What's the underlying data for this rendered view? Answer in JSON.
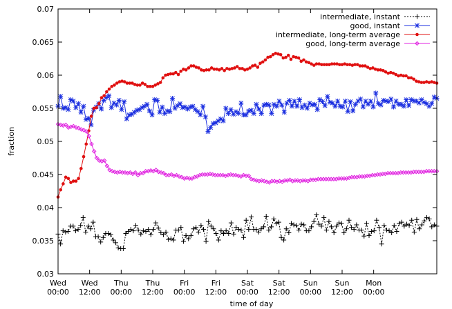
{
  "chart_data": {
    "type": "line",
    "title": "",
    "xlabel": "time of day",
    "ylabel": "fraction",
    "xlim": [
      0,
      96
    ],
    "ylim": [
      0.03,
      0.07
    ],
    "grid": false,
    "legend_position": "top-right",
    "x_ticks": [
      {
        "x": 0,
        "line1": "Wed",
        "line2": "00:00"
      },
      {
        "x": 8,
        "line1": "Wed",
        "line2": "12:00"
      },
      {
        "x": 16,
        "line1": "Thu",
        "line2": "00:00"
      },
      {
        "x": 24,
        "line1": "Thu",
        "line2": "12:00"
      },
      {
        "x": 32,
        "line1": "Fri",
        "line2": "00:00"
      },
      {
        "x": 40,
        "line1": "Fri",
        "line2": "12:00"
      },
      {
        "x": 48,
        "line1": "Sat",
        "line2": "00:00"
      },
      {
        "x": 56,
        "line1": "Sat",
        "line2": "12:00"
      },
      {
        "x": 64,
        "line1": "Sun",
        "line2": "00:00"
      },
      {
        "x": 72,
        "line1": "Sun",
        "line2": "12:00"
      },
      {
        "x": 80,
        "line1": "Mon",
        "line2": "00:00"
      }
    ],
    "y_ticks": [
      "0.03",
      "0.035",
      "0.04",
      "0.045",
      "0.05",
      "0.055",
      "0.06",
      "0.065",
      "0.07"
    ],
    "series": [
      {
        "name": "intermediate, instant",
        "color": "#000000",
        "marker": "plus",
        "dash": "2,2",
        "values": [
          0.036,
          0.0345,
          0.0365,
          0.0363,
          0.0364,
          0.0372,
          0.0372,
          0.0365,
          0.0367,
          0.0373,
          0.0385,
          0.0363,
          0.0372,
          0.0368,
          0.0378,
          0.0356,
          0.0356,
          0.0348,
          0.0355,
          0.0361,
          0.0361,
          0.0359,
          0.0351,
          0.0347,
          0.0339,
          0.0338,
          0.0338,
          0.0361,
          0.0364,
          0.0367,
          0.0365,
          0.0373,
          0.0366,
          0.036,
          0.0365,
          0.0364,
          0.0367,
          0.0359,
          0.0367,
          0.0377,
          0.0369,
          0.0362,
          0.0359,
          0.0363,
          0.0352,
          0.0353,
          0.0351,
          0.0366,
          0.0366,
          0.037,
          0.0349,
          0.0358,
          0.0353,
          0.0358,
          0.0368,
          0.037,
          0.0363,
          0.0373,
          0.0367,
          0.0349,
          0.0379,
          0.0372,
          0.0368,
          0.0361,
          0.0351,
          0.0365,
          0.0361,
          0.0365,
          0.0361,
          0.0377,
          0.036,
          0.037,
          0.0367,
          0.0366,
          0.0355,
          0.0381,
          0.0367,
          0.0386,
          0.0367,
          0.0367,
          0.0363,
          0.0368,
          0.0371,
          0.0387,
          0.0366,
          0.0371,
          0.0383,
          0.0376,
          0.0378,
          0.0355,
          0.0351,
          0.0368,
          0.0362,
          0.0376,
          0.0374,
          0.0373,
          0.0366,
          0.0375,
          0.0374,
          0.0365,
          0.0365,
          0.0371,
          0.0379,
          0.0389,
          0.0375,
          0.0372,
          0.0385,
          0.0366,
          0.0379,
          0.0371,
          0.0362,
          0.0372,
          0.0377,
          0.0376,
          0.0362,
          0.0368,
          0.0381,
          0.037,
          0.0367,
          0.0374,
          0.0366,
          0.0366,
          0.0357,
          0.0376,
          0.0358,
          0.0364,
          0.0365,
          0.0381,
          0.037,
          0.0345,
          0.0373,
          0.0366,
          0.0365,
          0.0362,
          0.0373,
          0.0364,
          0.0376,
          0.0378,
          0.0372,
          0.0375,
          0.0373,
          0.0381,
          0.0363,
          0.0382,
          0.0368,
          0.0374,
          0.038,
          0.0385,
          0.0383,
          0.0371,
          0.0374,
          0.0372
        ]
      },
      {
        "name": "good, instant",
        "color": "#1a2ee0",
        "marker": "star",
        "dash": "",
        "values": [
          0.0553,
          0.0568,
          0.055,
          0.0551,
          0.0548,
          0.0563,
          0.0561,
          0.0551,
          0.0557,
          0.0544,
          0.0553,
          0.0533,
          0.0535,
          0.0525,
          0.0547,
          0.0552,
          0.0557,
          0.0549,
          0.0562,
          0.0566,
          0.0569,
          0.0551,
          0.0558,
          0.0555,
          0.0562,
          0.0548,
          0.056,
          0.0534,
          0.054,
          0.0541,
          0.0544,
          0.0547,
          0.0548,
          0.0551,
          0.0553,
          0.0556,
          0.0546,
          0.054,
          0.0563,
          0.0562,
          0.0544,
          0.0552,
          0.0542,
          0.0546,
          0.0545,
          0.0565,
          0.055,
          0.0554,
          0.0557,
          0.0551,
          0.0552,
          0.0549,
          0.0552,
          0.0553,
          0.0548,
          0.0545,
          0.054,
          0.0553,
          0.0537,
          0.0515,
          0.0521,
          0.0527,
          0.0528,
          0.0531,
          0.0534,
          0.0531,
          0.055,
          0.0542,
          0.0548,
          0.0541,
          0.0545,
          0.0542,
          0.0558,
          0.054,
          0.054,
          0.0546,
          0.0547,
          0.0542,
          0.0556,
          0.0549,
          0.0542,
          0.0555,
          0.0556,
          0.0555,
          0.0542,
          0.0556,
          0.0553,
          0.0561,
          0.0555,
          0.0544,
          0.0558,
          0.0562,
          0.0553,
          0.0561,
          0.0553,
          0.0563,
          0.0551,
          0.0555,
          0.055,
          0.0558,
          0.0555,
          0.0556,
          0.0548,
          0.0563,
          0.056,
          0.0554,
          0.0568,
          0.0559,
          0.0558,
          0.0553,
          0.0561,
          0.0553,
          0.0552,
          0.0561,
          0.0545,
          0.056,
          0.0546,
          0.0556,
          0.0561,
          0.0564,
          0.0552,
          0.0561,
          0.0556,
          0.0561,
          0.0552,
          0.0573,
          0.0557,
          0.0555,
          0.0562,
          0.0561,
          0.056,
          0.0564,
          0.0552,
          0.0561,
          0.0556,
          0.0556,
          0.0553,
          0.0563,
          0.0554,
          0.0563,
          0.0561,
          0.0561,
          0.0558,
          0.0563,
          0.0559,
          0.0557,
          0.0553,
          0.0557,
          0.0567,
          0.0565
        ]
      },
      {
        "name": "intermediate, long-term average",
        "color": "#e01010",
        "marker": "circle",
        "dash": "",
        "values": [
          0.0416,
          0.0427,
          0.0436,
          0.0446,
          0.0444,
          0.0438,
          0.044,
          0.044,
          0.0444,
          0.0459,
          0.0477,
          0.0496,
          0.0516,
          0.0538,
          0.055,
          0.0551,
          0.0557,
          0.0566,
          0.0569,
          0.0575,
          0.0579,
          0.0583,
          0.0585,
          0.0588,
          0.059,
          0.0591,
          0.059,
          0.0588,
          0.0588,
          0.0588,
          0.0586,
          0.0585,
          0.0585,
          0.0588,
          0.0586,
          0.0583,
          0.0583,
          0.0583,
          0.0585,
          0.0587,
          0.0589,
          0.0596,
          0.06,
          0.0601,
          0.0602,
          0.0602,
          0.0604,
          0.0601,
          0.0606,
          0.0609,
          0.0608,
          0.0611,
          0.0614,
          0.0614,
          0.0612,
          0.0611,
          0.0608,
          0.0607,
          0.0608,
          0.0608,
          0.0611,
          0.0609,
          0.0609,
          0.0608,
          0.061,
          0.0607,
          0.061,
          0.0609,
          0.061,
          0.0611,
          0.0613,
          0.061,
          0.061,
          0.0608,
          0.0609,
          0.0611,
          0.0614,
          0.0615,
          0.0612,
          0.0618,
          0.062,
          0.0623,
          0.0627,
          0.0628,
          0.0631,
          0.0633,
          0.0632,
          0.0631,
          0.0626,
          0.0627,
          0.063,
          0.0624,
          0.0628,
          0.0627,
          0.0626,
          0.0621,
          0.0623,
          0.062,
          0.0619,
          0.0617,
          0.0615,
          0.0617,
          0.0617,
          0.0616,
          0.0616,
          0.0616,
          0.0616,
          0.0617,
          0.0617,
          0.0617,
          0.0616,
          0.0616,
          0.0617,
          0.0616,
          0.0616,
          0.0615,
          0.0616,
          0.0616,
          0.0614,
          0.0614,
          0.0614,
          0.0612,
          0.061,
          0.0611,
          0.0609,
          0.0608,
          0.0608,
          0.0607,
          0.0605,
          0.0603,
          0.0604,
          0.0603,
          0.0601,
          0.0599,
          0.06,
          0.0599,
          0.0599,
          0.0596,
          0.0596,
          0.0594,
          0.0591,
          0.059,
          0.0589,
          0.0589,
          0.059,
          0.0589,
          0.059,
          0.0589,
          0.0588
        ]
      },
      {
        "name": "good, long-term average",
        "color": "#e020e0",
        "marker": "diamond",
        "dash": "",
        "values": [
          0.0526,
          0.0525,
          0.0524,
          0.0525,
          0.0521,
          0.0522,
          0.0523,
          0.0521,
          0.052,
          0.0518,
          0.0517,
          0.0515,
          0.0508,
          0.0496,
          0.0485,
          0.0475,
          0.0471,
          0.047,
          0.0471,
          0.0463,
          0.0457,
          0.0455,
          0.0454,
          0.0453,
          0.0454,
          0.0453,
          0.0453,
          0.0452,
          0.0453,
          0.0451,
          0.0453,
          0.0449,
          0.0452,
          0.0452,
          0.0455,
          0.0455,
          0.0456,
          0.0455,
          0.0457,
          0.0454,
          0.0453,
          0.0452,
          0.0449,
          0.0449,
          0.045,
          0.0448,
          0.0449,
          0.0447,
          0.0446,
          0.0444,
          0.0445,
          0.0444,
          0.0444,
          0.0446,
          0.0447,
          0.0449,
          0.045,
          0.045,
          0.045,
          0.0451,
          0.045,
          0.0449,
          0.0449,
          0.0449,
          0.0449,
          0.0448,
          0.0449,
          0.045,
          0.0449,
          0.0449,
          0.0448,
          0.0447,
          0.0449,
          0.0448,
          0.0448,
          0.0443,
          0.0442,
          0.0441,
          0.044,
          0.0441,
          0.044,
          0.0439,
          0.0438,
          0.044,
          0.044,
          0.0439,
          0.044,
          0.0439,
          0.0441,
          0.0441,
          0.0442,
          0.044,
          0.0441,
          0.0441,
          0.044,
          0.0441,
          0.0441,
          0.044,
          0.0442,
          0.0442,
          0.0442,
          0.0443,
          0.0443,
          0.0443,
          0.0443,
          0.0443,
          0.0443,
          0.0443,
          0.0443,
          0.0444,
          0.0444,
          0.0444,
          0.0444,
          0.0445,
          0.0446,
          0.0446,
          0.0446,
          0.0447,
          0.0447,
          0.0447,
          0.0448,
          0.0448,
          0.0449,
          0.0449,
          0.045,
          0.045,
          0.0451,
          0.0451,
          0.0452,
          0.0452,
          0.0452,
          0.0452,
          0.0452,
          0.0453,
          0.0453,
          0.0453,
          0.0453,
          0.0453,
          0.0454,
          0.0454,
          0.0454,
          0.0454,
          0.0454,
          0.0455,
          0.0455,
          0.0455,
          0.0455,
          0.0455
        ]
      }
    ]
  }
}
